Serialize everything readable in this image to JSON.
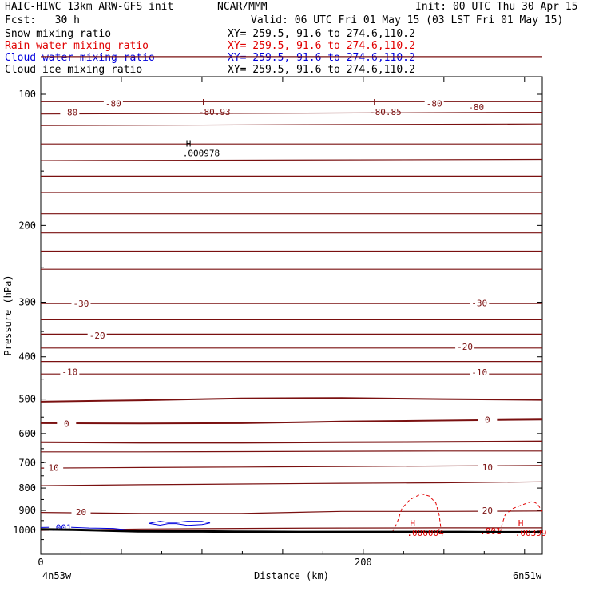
{
  "header": {
    "model": "HAIC-HIWC 13km ARW-GFS init",
    "org": "NCAR/MMM",
    "init": "Init: 00 UTC Thu 30 Apr 15",
    "fcst": "Fcst:   30 h",
    "valid": "Valid: 06 UTC Fri 01 May 15 (03 LST Fri 01 May 15)",
    "fields": [
      {
        "name": "Snow mixing ratio",
        "xy": "XY= 259.5, 91.6 to 274.6,110.2",
        "color": "#000000"
      },
      {
        "name": "Rain water mixing ratio",
        "xy": "XY= 259.5, 91.6 to 274.6,110.2",
        "color": "#e00000"
      },
      {
        "name": "Cloud water mixing ratio",
        "xy": "XY= 259.5, 91.6 to 274.6,110.2",
        "color": "#0000dd"
      },
      {
        "name": "Cloud ice mixing ratio",
        "xy": "XY= 259.5, 91.6 to 274.6,110.2",
        "color": "#000000"
      }
    ]
  },
  "chart_data": {
    "type": "line",
    "xlabel": "Distance (km)",
    "ylabel": "Pressure (hPa)",
    "xlim": [
      0,
      311
    ],
    "x_ticks": [
      0,
      50,
      100,
      150,
      200,
      250,
      300
    ],
    "x_tick_labels": [
      "0",
      "",
      "",
      "",
      "200",
      "",
      ""
    ],
    "ylim": [
      1050,
      72
    ],
    "y_ticks": [
      100,
      200,
      300,
      400,
      500,
      600,
      700,
      800,
      900,
      1000
    ],
    "end_labels": {
      "left": "4n53w",
      "right": "6n51w"
    },
    "colors": {
      "temperature": "#7a1010",
      "rain": "#e00000",
      "cloud_water": "#0000dd",
      "terrain": "#000000"
    },
    "temperature_isotherms": [
      {
        "value": -80,
        "p": [
          82,
          82
        ]
      },
      {
        "value": -80,
        "p": [
          104,
          104
        ]
      },
      {
        "value": -80,
        "p": [
          111,
          110
        ]
      },
      {
        "value": -80,
        "p": [
          118,
          117
        ]
      },
      {
        "value": -80,
        "p": [
          130,
          130
        ]
      },
      {
        "value": -80,
        "p": [
          142,
          141
        ]
      },
      {
        "value": -80,
        "p": [
          154,
          154
        ]
      },
      {
        "value": -80,
        "p": [
          168,
          168
        ]
      },
      {
        "value": -80,
        "p": [
          188,
          188
        ]
      },
      {
        "value": -80,
        "p": [
          208,
          208
        ]
      },
      {
        "value": -80,
        "p": [
          229,
          229
        ]
      },
      {
        "value": -80,
        "p": [
          252,
          252
        ]
      },
      {
        "value": -30,
        "p": [
          302,
          302
        ]
      },
      {
        "value": -30,
        "p": [
          329,
          329
        ]
      },
      {
        "value": -20,
        "p": [
          355,
          355
        ]
      },
      {
        "value": -20,
        "p": [
          382,
          382
        ]
      },
      {
        "value": -10,
        "p": [
          410,
          410
        ]
      },
      {
        "value": -10,
        "p": [
          438,
          438
        ]
      },
      {
        "value": 0,
        "p": [
          507,
          503,
          498,
          497,
          500,
          502
        ]
      },
      {
        "value": 0,
        "p": [
          568,
          569,
          568,
          563,
          560,
          557
        ]
      },
      {
        "value": 0,
        "p": [
          628,
          630,
          630,
          628,
          627,
          625
        ]
      },
      {
        "value": 10,
        "p": [
          661,
          661,
          660,
          659,
          658,
          658
        ]
      },
      {
        "value": 10,
        "p": [
          720,
          718,
          716,
          714,
          712,
          710
        ]
      },
      {
        "value": 10,
        "p": [
          790,
          786,
          783,
          780,
          778,
          774
        ]
      },
      {
        "value": 20,
        "p": [
          910,
          915,
          915,
          905,
          905,
          903
        ]
      },
      {
        "value": 20,
        "p": [
          1000,
          993,
          990,
          988,
          987,
          987
        ]
      }
    ],
    "isotherm_labels": [
      {
        "text": "-80",
        "x": 45,
        "p": 105
      },
      {
        "text": "-80",
        "x": 244,
        "p": 105
      },
      {
        "text": "-80",
        "x": 18,
        "p": 110
      },
      {
        "text": "-80",
        "x": 270,
        "p": 107
      },
      {
        "text": "-30",
        "x": 25,
        "p": 302
      },
      {
        "text": "-30",
        "x": 272,
        "p": 301
      },
      {
        "text": "-20",
        "x": 35,
        "p": 357
      },
      {
        "text": "-20",
        "x": 263,
        "p": 379
      },
      {
        "text": "-10",
        "x": 18,
        "p": 433
      },
      {
        "text": "-10",
        "x": 272,
        "p": 434
      },
      {
        "text": "0",
        "x": 16,
        "p": 569
      },
      {
        "text": "0",
        "x": 277,
        "p": 558
      },
      {
        "text": "10",
        "x": 8,
        "p": 718
      },
      {
        "text": "10",
        "x": 277,
        "p": 717
      },
      {
        "text": "20",
        "x": 25,
        "p": 907
      },
      {
        "text": "20",
        "x": 277,
        "p": 900
      }
    ],
    "extrema": [
      {
        "kind": "L",
        "value": "-80.93",
        "x": 100,
        "p": 107,
        "color": "#7a1010"
      },
      {
        "kind": "L",
        "value": "-80.85",
        "x": 206,
        "p": 107,
        "color": "#7a1010"
      },
      {
        "kind": "H",
        "value": ".000978",
        "x": 90,
        "p": 133,
        "color": "#000000"
      },
      {
        "kind": "H",
        "value": ".006004",
        "x": 229,
        "p": 987,
        "color": "#e00000"
      },
      {
        "kind": "H",
        "value": ".00399",
        "x": 296,
        "p": 988,
        "color": "#e00000"
      }
    ],
    "rain_contours": [
      {
        "value": ".001",
        "x": [
          218,
          221,
          224,
          229,
          236,
          241,
          245,
          247,
          248,
          246
        ],
        "p": [
          1010,
          960,
          890,
          850,
          825,
          835,
          865,
          920,
          980,
          1010
        ]
      },
      {
        "value": ".001",
        "x": [
          285,
          286,
          288,
          293,
          300,
          305,
          308,
          311
        ],
        "p": [
          1010,
          970,
          920,
          890,
          870,
          858,
          870,
          905
        ]
      }
    ],
    "rain_labels": [
      {
        "text": ".001",
        "x": 279,
        "p": 1005
      }
    ],
    "cloud_water_contours": [
      {
        "value": ".001",
        "x": [
          0,
          15,
          30,
          45,
          60
        ],
        "p": [
          985,
          983,
          988,
          990,
          1003
        ]
      }
    ],
    "cloud_water_labels": [
      {
        "text": ".001",
        "x": 6,
        "p": 986
      }
    ],
    "cloud_water_blob": {
      "x": [
        67,
        74,
        79,
        84,
        91,
        100,
        105,
        100,
        91,
        84,
        79,
        74,
        67
      ],
      "p": [
        964,
        953,
        959,
        959,
        953,
        954,
        962,
        970,
        974,
        965,
        965,
        973,
        964
      ]
    },
    "terrain": {
      "x": [
        0,
        20,
        40,
        60,
        80,
        100,
        120,
        140,
        160,
        180,
        200,
        220,
        240,
        260,
        280,
        300,
        311
      ],
      "p": [
        995,
        997,
        1001,
        1005,
        1006,
        1006,
        1007,
        1008,
        1009,
        1009,
        1009,
        1009,
        1009,
        1009,
        1010,
        1010,
        1010
      ]
    }
  }
}
